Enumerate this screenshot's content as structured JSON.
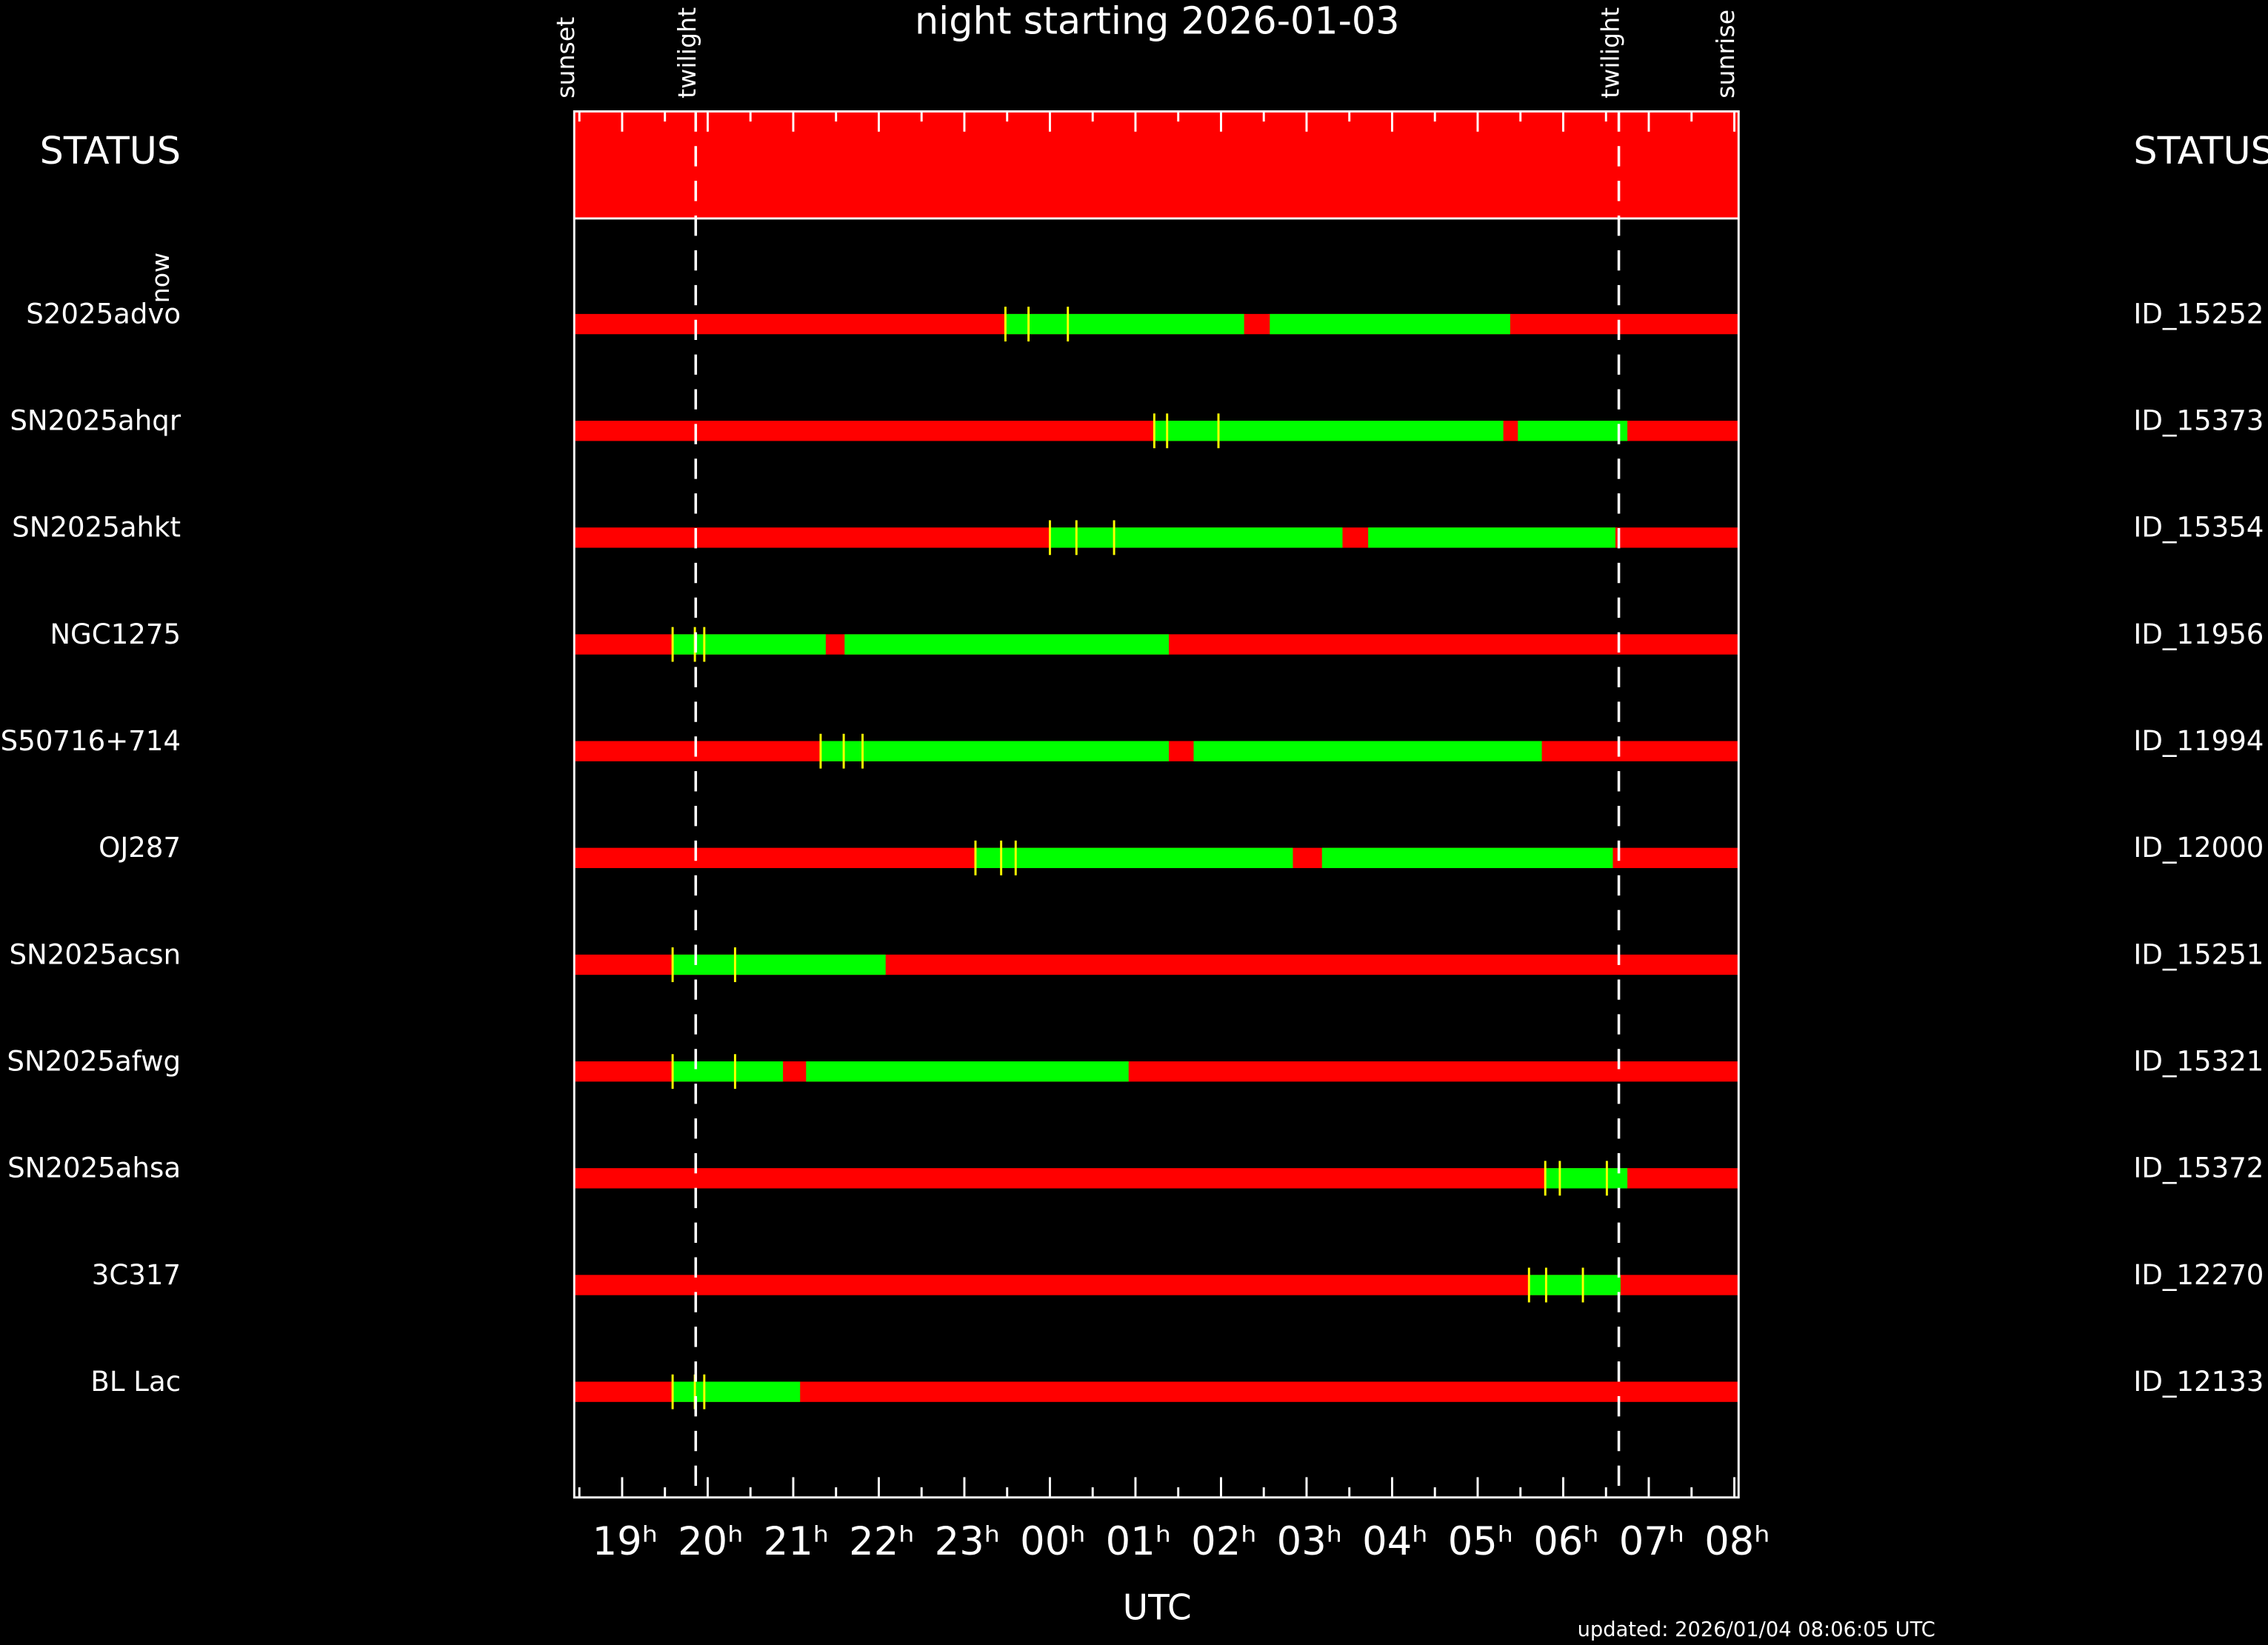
{
  "chart_data": {
    "type": "timeline",
    "title": "night starting 2026-01-03",
    "xlabel": "UTC",
    "status_label": "STATUS",
    "now_label": "now",
    "updated": "updated: 2026/01/04 08:06:05 UTC",
    "colors": {
      "available": "#00ff00",
      "unavailable": "#ff0000",
      "mark": "#ffff00",
      "now": "#0000ff"
    },
    "xlim": [
      18.44,
      32.05
    ],
    "xticks": [
      {
        "value": 19,
        "label": "19ʰ"
      },
      {
        "value": 20,
        "label": "20ʰ"
      },
      {
        "value": 21,
        "label": "21ʰ"
      },
      {
        "value": 22,
        "label": "22ʰ"
      },
      {
        "value": 23,
        "label": "23ʰ"
      },
      {
        "value": 24,
        "label": "00ʰ"
      },
      {
        "value": 25,
        "label": "01ʰ"
      },
      {
        "value": 26,
        "label": "02ʰ"
      },
      {
        "value": 27,
        "label": "03ʰ"
      },
      {
        "value": 28,
        "label": "04ʰ"
      },
      {
        "value": 29,
        "label": "05ʰ"
      },
      {
        "value": 30,
        "label": "06ʰ"
      },
      {
        "value": 31,
        "label": "07ʰ"
      },
      {
        "value": 32,
        "label": "08ʰ"
      }
    ],
    "xminorticks": [
      18.5,
      19.5,
      20.5,
      21.5,
      22.5,
      23.5,
      24.5,
      25.5,
      26.5,
      27.5,
      28.5,
      29.5,
      30.5,
      31.5
    ],
    "events": [
      {
        "label": "sunset",
        "x": 18.44,
        "line": false
      },
      {
        "label": "twilight",
        "x": 19.86,
        "line": true
      },
      {
        "label": "twilight",
        "x": 30.65,
        "line": true
      },
      {
        "label": "sunrise",
        "x": 32.0,
        "line": false
      }
    ],
    "rows": [
      {
        "name": "S2025advo",
        "id": "ID_15252",
        "windows": [
          [
            23.48,
            26.27
          ],
          [
            26.57,
            29.38
          ]
        ],
        "marks": [
          23.48,
          23.75,
          24.21
        ]
      },
      {
        "name": "SN2025ahqr",
        "id": "ID_15373",
        "windows": [
          [
            25.22,
            29.3
          ],
          [
            29.47,
            30.75
          ]
        ],
        "marks": [
          25.22,
          25.37,
          25.97
        ]
      },
      {
        "name": "SN2025ahkt",
        "id": "ID_15354",
        "windows": [
          [
            24.0,
            27.42
          ],
          [
            27.72,
            30.61
          ]
        ],
        "marks": [
          24.0,
          24.31,
          24.75
        ]
      },
      {
        "name": "NGC1275",
        "id": "ID_11956",
        "windows": [
          [
            19.59,
            21.38
          ],
          [
            21.6,
            25.39
          ]
        ],
        "marks": [
          19.59,
          19.85,
          19.96
        ]
      },
      {
        "name": "S50716+714",
        "id": "ID_11994",
        "windows": [
          [
            21.32,
            25.39
          ],
          [
            25.68,
            29.75
          ]
        ],
        "marks": [
          21.32,
          21.59,
          21.81
        ]
      },
      {
        "name": "OJ287",
        "id": "ID_12000",
        "windows": [
          [
            23.13,
            26.84
          ],
          [
            27.18,
            30.58
          ]
        ],
        "marks": [
          23.13,
          23.43,
          23.6
        ]
      },
      {
        "name": "SN2025acsn",
        "id": "ID_15251",
        "windows": [
          [
            19.59,
            22.08
          ]
        ],
        "marks": [
          19.59,
          20.32
        ]
      },
      {
        "name": "SN2025afwg",
        "id": "ID_15321",
        "windows": [
          [
            19.59,
            20.88
          ],
          [
            21.15,
            24.92
          ]
        ],
        "marks": [
          19.59,
          20.32
        ]
      },
      {
        "name": "SN2025ahsa",
        "id": "ID_15372",
        "windows": [
          [
            29.79,
            30.75
          ]
        ],
        "marks": [
          29.79,
          29.96,
          30.51
        ]
      },
      {
        "name": "3C317",
        "id": "ID_12270",
        "windows": [
          [
            29.6,
            30.67
          ]
        ],
        "marks": [
          29.6,
          29.8,
          30.23
        ]
      },
      {
        "name": "BL Lac",
        "id": "ID_12133",
        "windows": [
          [
            19.59,
            21.08
          ]
        ],
        "marks": [
          19.59,
          19.85,
          19.96
        ]
      }
    ]
  }
}
